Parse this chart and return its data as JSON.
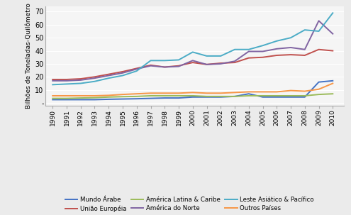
{
  "years": [
    1990,
    1991,
    1992,
    1993,
    1994,
    1995,
    1996,
    1997,
    1998,
    1999,
    2000,
    2001,
    2002,
    2003,
    2004,
    2005,
    2006,
    2007,
    2008,
    2009,
    2010
  ],
  "series": {
    "Mundo Árabe": [
      2.5,
      2.5,
      2.5,
      2.5,
      2.8,
      3.0,
      3.2,
      3.5,
      3.8,
      3.8,
      4.5,
      4.5,
      4.5,
      5.0,
      7.0,
      4.5,
      4.5,
      4.5,
      4.5,
      16.0,
      17.0
    ],
    "União Européia": [
      18.0,
      18.0,
      18.5,
      20.0,
      22.0,
      24.0,
      26.5,
      29.0,
      27.5,
      28.5,
      31.0,
      29.5,
      30.5,
      31.0,
      34.5,
      35.0,
      36.5,
      37.0,
      36.5,
      41.0,
      40.0
    ],
    "América Latina & Caribe": [
      3.5,
      3.5,
      3.8,
      4.0,
      4.5,
      4.8,
      5.0,
      5.5,
      5.5,
      5.5,
      5.5,
      5.0,
      5.0,
      5.0,
      5.5,
      5.5,
      5.5,
      5.5,
      5.5,
      6.5,
      7.0
    ],
    "América do Norte": [
      17.0,
      17.0,
      17.5,
      19.0,
      21.0,
      23.0,
      26.0,
      28.5,
      27.5,
      28.0,
      32.5,
      29.5,
      30.0,
      32.0,
      39.5,
      39.5,
      41.5,
      42.5,
      41.0,
      63.0,
      53.0
    ],
    "Leste Asiático & Pacífico": [
      14.0,
      14.5,
      15.0,
      16.5,
      19.0,
      21.0,
      24.5,
      32.5,
      32.5,
      33.0,
      39.0,
      36.0,
      36.0,
      41.0,
      41.0,
      44.0,
      47.5,
      50.0,
      56.0,
      55.0,
      69.0
    ],
    "Outros Países": [
      5.5,
      5.5,
      5.5,
      5.5,
      5.8,
      6.5,
      7.0,
      7.5,
      7.5,
      7.5,
      8.0,
      7.5,
      7.5,
      8.0,
      8.5,
      8.5,
      8.5,
      9.5,
      9.0,
      10.5,
      15.0
    ]
  },
  "colors": {
    "Mundo Árabe": "#4472C4",
    "União Européia": "#C0504D",
    "América Latina & Caribe": "#9BBB59",
    "América do Norte": "#8064A2",
    "Leste Asiático & Pacífico": "#4BACC6",
    "Outros Países": "#F79646"
  },
  "ylabel": "Bilhões de Toneladas-Quilômetro",
  "yticks": [
    0,
    10,
    20,
    30,
    40,
    50,
    60,
    70
  ],
  "ytick_labels": [
    "-",
    "10",
    "20",
    "30",
    "40",
    "50",
    "60",
    "70"
  ],
  "ylim": [
    -2,
    74
  ],
  "legend_order": [
    "Mundo Árabe",
    "União Européia",
    "América Latina & Caribe",
    "América do Norte",
    "Leste Asiático & Pacífico",
    "Outros Países"
  ],
  "background_color": "#EBEBEB",
  "plot_bg_color": "#F5F5F5",
  "linewidth": 1.4
}
